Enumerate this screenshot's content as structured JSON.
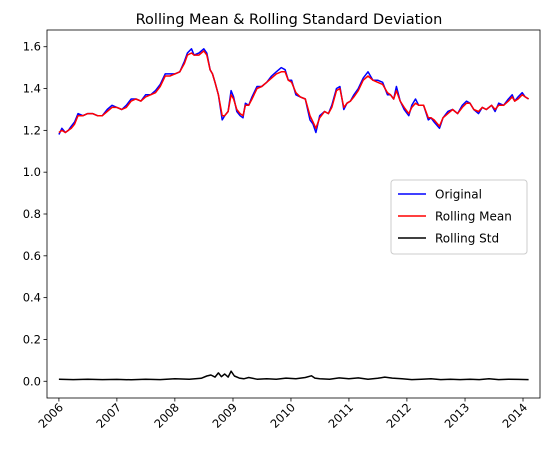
{
  "chart_data": {
    "type": "line",
    "title": "Rolling Mean & Rolling Standard Deviation",
    "xlabel": "",
    "ylabel": "",
    "xlim": [
      "2005-10-18",
      "2014-04-18"
    ],
    "ylim": [
      -0.08,
      1.68
    ],
    "x_ticks": [
      "2006",
      "2007",
      "2008",
      "2009",
      "2010",
      "2011",
      "2012",
      "2013",
      "2014"
    ],
    "y_ticks": [
      0.0,
      0.2,
      0.4,
      0.6,
      0.8,
      1.0,
      1.2,
      1.4,
      1.6
    ],
    "y_tick_labels": [
      "0.0",
      "0.2",
      "0.4",
      "0.6",
      "0.8",
      "1.0",
      "1.2",
      "1.4",
      "1.6"
    ],
    "grid": false,
    "legend_position": "center-right",
    "series": [
      {
        "name": "Original",
        "color": "#0000ff",
        "x": [
          "2006-01-01",
          "2006-01-20",
          "2006-02-10",
          "2006-03-01",
          "2006-03-20",
          "2006-04-10",
          "2006-05-01",
          "2006-06-01",
          "2006-07-01",
          "2006-08-01",
          "2006-09-01",
          "2006-10-01",
          "2006-11-01",
          "2006-12-01",
          "2007-01-01",
          "2007-02-01",
          "2007-03-01",
          "2007-04-01",
          "2007-05-01",
          "2007-06-01",
          "2007-07-01",
          "2007-08-01",
          "2007-09-01",
          "2007-10-01",
          "2007-11-01",
          "2007-12-01",
          "2008-01-01",
          "2008-02-01",
          "2008-03-01",
          "2008-03-20",
          "2008-04-15",
          "2008-05-01",
          "2008-06-01",
          "2008-07-01",
          "2008-07-20",
          "2008-08-10",
          "2008-08-25",
          "2008-09-10",
          "2008-10-01",
          "2008-10-25",
          "2008-11-10",
          "2008-12-01",
          "2008-12-20",
          "2009-01-05",
          "2009-01-25",
          "2009-02-15",
          "2009-03-05",
          "2009-03-20",
          "2009-04-10",
          "2009-05-01",
          "2009-06-01",
          "2009-07-01",
          "2009-08-01",
          "2009-09-01",
          "2009-10-01",
          "2009-11-01",
          "2009-11-25",
          "2009-12-15",
          "2010-01-05",
          "2010-02-01",
          "2010-03-01",
          "2010-04-01",
          "2010-05-01",
          "2010-05-20",
          "2010-06-07",
          "2010-07-01",
          "2010-08-01",
          "2010-08-25",
          "2010-09-15",
          "2010-10-15",
          "2010-11-05",
          "2010-11-30",
          "2010-12-20",
          "2011-01-10",
          "2011-02-01",
          "2011-03-01",
          "2011-04-01",
          "2011-05-01",
          "2011-06-01",
          "2011-07-01",
          "2011-08-01",
          "2011-09-01",
          "2011-09-20",
          "2011-10-10",
          "2011-10-27",
          "2011-11-20",
          "2011-12-15",
          "2012-01-13",
          "2012-02-01",
          "2012-02-24",
          "2012-03-15",
          "2012-04-15",
          "2012-05-15",
          "2012-06-01",
          "2012-06-20",
          "2012-07-24",
          "2012-08-15",
          "2012-09-15",
          "2012-10-15",
          "2012-11-15",
          "2012-12-15",
          "2013-01-10",
          "2013-02-01",
          "2013-02-25",
          "2013-03-27",
          "2013-04-20",
          "2013-05-15",
          "2013-06-17",
          "2013-07-09",
          "2013-08-01",
          "2013-09-01",
          "2013-10-01",
          "2013-10-25",
          "2013-11-10",
          "2013-12-01",
          "2013-12-27",
          "2014-01-15",
          "2014-02-05"
        ],
        "y": [
          1.18,
          1.21,
          1.19,
          1.2,
          1.22,
          1.24,
          1.28,
          1.27,
          1.28,
          1.28,
          1.27,
          1.27,
          1.3,
          1.32,
          1.31,
          1.3,
          1.32,
          1.35,
          1.35,
          1.34,
          1.37,
          1.37,
          1.39,
          1.42,
          1.47,
          1.47,
          1.47,
          1.48,
          1.53,
          1.57,
          1.59,
          1.56,
          1.57,
          1.59,
          1.57,
          1.49,
          1.47,
          1.43,
          1.37,
          1.25,
          1.27,
          1.29,
          1.39,
          1.36,
          1.29,
          1.27,
          1.26,
          1.33,
          1.32,
          1.36,
          1.41,
          1.41,
          1.43,
          1.46,
          1.48,
          1.5,
          1.49,
          1.44,
          1.44,
          1.37,
          1.36,
          1.35,
          1.25,
          1.23,
          1.19,
          1.27,
          1.29,
          1.28,
          1.32,
          1.4,
          1.41,
          1.3,
          1.33,
          1.34,
          1.37,
          1.4,
          1.45,
          1.48,
          1.44,
          1.44,
          1.43,
          1.37,
          1.37,
          1.35,
          1.41,
          1.34,
          1.3,
          1.27,
          1.32,
          1.35,
          1.32,
          1.32,
          1.25,
          1.26,
          1.24,
          1.21,
          1.26,
          1.29,
          1.3,
          1.28,
          1.32,
          1.34,
          1.33,
          1.3,
          1.28,
          1.31,
          1.3,
          1.32,
          1.29,
          1.33,
          1.32,
          1.35,
          1.37,
          1.34,
          1.36,
          1.38,
          1.36,
          1.35
        ]
      },
      {
        "name": "Rolling Mean",
        "color": "#ff0000",
        "x": [
          "2006-01-01",
          "2006-01-20",
          "2006-02-10",
          "2006-03-01",
          "2006-03-20",
          "2006-04-10",
          "2006-05-01",
          "2006-06-01",
          "2006-07-01",
          "2006-08-01",
          "2006-09-01",
          "2006-10-01",
          "2006-11-01",
          "2006-12-01",
          "2007-01-01",
          "2007-02-01",
          "2007-03-01",
          "2007-04-01",
          "2007-05-01",
          "2007-06-01",
          "2007-07-01",
          "2007-08-01",
          "2007-09-01",
          "2007-10-01",
          "2007-11-01",
          "2007-12-01",
          "2008-01-01",
          "2008-02-01",
          "2008-03-01",
          "2008-03-20",
          "2008-04-15",
          "2008-05-01",
          "2008-06-01",
          "2008-07-01",
          "2008-07-20",
          "2008-08-10",
          "2008-08-25",
          "2008-09-10",
          "2008-10-01",
          "2008-10-25",
          "2008-11-10",
          "2008-12-01",
          "2008-12-20",
          "2009-01-05",
          "2009-01-25",
          "2009-02-15",
          "2009-03-05",
          "2009-03-20",
          "2009-04-10",
          "2009-05-01",
          "2009-06-01",
          "2009-07-01",
          "2009-08-01",
          "2009-09-01",
          "2009-10-01",
          "2009-11-01",
          "2009-11-25",
          "2009-12-15",
          "2010-01-05",
          "2010-02-01",
          "2010-03-01",
          "2010-04-01",
          "2010-05-01",
          "2010-05-20",
          "2010-06-07",
          "2010-07-01",
          "2010-08-01",
          "2010-08-25",
          "2010-09-15",
          "2010-10-15",
          "2010-11-05",
          "2010-11-30",
          "2010-12-20",
          "2011-01-10",
          "2011-02-01",
          "2011-03-01",
          "2011-04-01",
          "2011-05-01",
          "2011-06-01",
          "2011-07-01",
          "2011-08-01",
          "2011-09-01",
          "2011-09-20",
          "2011-10-10",
          "2011-10-27",
          "2011-11-20",
          "2011-12-15",
          "2012-01-13",
          "2012-02-01",
          "2012-02-24",
          "2012-03-15",
          "2012-04-15",
          "2012-05-15",
          "2012-06-01",
          "2012-06-20",
          "2012-07-24",
          "2012-08-15",
          "2012-09-15",
          "2012-10-15",
          "2012-11-15",
          "2012-12-15",
          "2013-01-10",
          "2013-02-01",
          "2013-02-25",
          "2013-03-27",
          "2013-04-20",
          "2013-05-15",
          "2013-06-17",
          "2013-07-09",
          "2013-08-01",
          "2013-09-01",
          "2013-10-01",
          "2013-10-25",
          "2013-11-10",
          "2013-12-01",
          "2013-12-27",
          "2014-01-15",
          "2014-02-05"
        ],
        "y": [
          1.19,
          1.2,
          1.19,
          1.2,
          1.21,
          1.23,
          1.27,
          1.27,
          1.28,
          1.28,
          1.27,
          1.27,
          1.29,
          1.31,
          1.31,
          1.3,
          1.31,
          1.34,
          1.35,
          1.34,
          1.36,
          1.37,
          1.38,
          1.41,
          1.46,
          1.46,
          1.47,
          1.48,
          1.52,
          1.56,
          1.57,
          1.56,
          1.56,
          1.58,
          1.56,
          1.49,
          1.47,
          1.43,
          1.37,
          1.27,
          1.27,
          1.29,
          1.37,
          1.35,
          1.3,
          1.28,
          1.27,
          1.32,
          1.32,
          1.35,
          1.4,
          1.41,
          1.43,
          1.45,
          1.47,
          1.48,
          1.48,
          1.44,
          1.43,
          1.38,
          1.36,
          1.35,
          1.27,
          1.24,
          1.21,
          1.26,
          1.29,
          1.28,
          1.31,
          1.39,
          1.4,
          1.31,
          1.33,
          1.34,
          1.36,
          1.39,
          1.44,
          1.46,
          1.44,
          1.43,
          1.42,
          1.38,
          1.37,
          1.35,
          1.39,
          1.34,
          1.31,
          1.28,
          1.31,
          1.33,
          1.32,
          1.32,
          1.26,
          1.26,
          1.25,
          1.22,
          1.26,
          1.28,
          1.3,
          1.28,
          1.31,
          1.33,
          1.33,
          1.3,
          1.29,
          1.31,
          1.3,
          1.32,
          1.3,
          1.32,
          1.32,
          1.34,
          1.36,
          1.34,
          1.35,
          1.37,
          1.36,
          1.35
        ]
      },
      {
        "name": "Rolling Std",
        "color": "#000000",
        "x": [
          "2006-01-01",
          "2006-04-01",
          "2006-07-01",
          "2006-10-01",
          "2007-01-01",
          "2007-04-01",
          "2007-07-01",
          "2007-10-01",
          "2008-01-01",
          "2008-04-01",
          "2008-06-15",
          "2008-07-20",
          "2008-08-15",
          "2008-09-10",
          "2008-10-01",
          "2008-10-20",
          "2008-11-10",
          "2008-12-01",
          "2008-12-20",
          "2009-01-10",
          "2009-02-10",
          "2009-03-10",
          "2009-04-10",
          "2009-06-01",
          "2009-08-01",
          "2009-10-01",
          "2009-12-01",
          "2010-02-01",
          "2010-04-01",
          "2010-05-10",
          "2010-06-01",
          "2010-07-01",
          "2010-09-01",
          "2010-11-01",
          "2011-01-01",
          "2011-03-01",
          "2011-05-01",
          "2011-07-01",
          "2011-08-15",
          "2011-10-01",
          "2011-12-01",
          "2012-02-01",
          "2012-04-01",
          "2012-06-01",
          "2012-08-01",
          "2012-10-01",
          "2012-12-01",
          "2013-02-01",
          "2013-04-01",
          "2013-06-01",
          "2013-08-01",
          "2013-10-01",
          "2013-12-01",
          "2014-02-05"
        ],
        "y": [
          0.01,
          0.008,
          0.01,
          0.008,
          0.009,
          0.007,
          0.01,
          0.008,
          0.012,
          0.01,
          0.014,
          0.025,
          0.03,
          0.02,
          0.04,
          0.022,
          0.035,
          0.02,
          0.048,
          0.025,
          0.015,
          0.012,
          0.018,
          0.01,
          0.012,
          0.01,
          0.015,
          0.012,
          0.018,
          0.026,
          0.015,
          0.012,
          0.01,
          0.016,
          0.012,
          0.016,
          0.01,
          0.014,
          0.02,
          0.015,
          0.012,
          0.008,
          0.01,
          0.012,
          0.008,
          0.01,
          0.008,
          0.01,
          0.008,
          0.012,
          0.008,
          0.01,
          0.009,
          0.008
        ]
      }
    ]
  }
}
